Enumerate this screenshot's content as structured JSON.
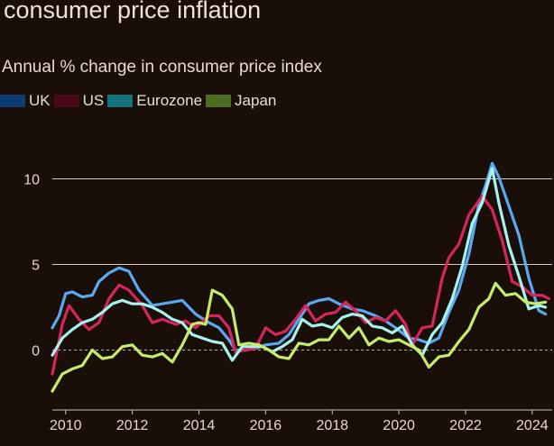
{
  "header": {
    "title": "consumer price inflation",
    "subtitle": "Annual % change in consumer price index"
  },
  "chart_data": {
    "type": "line",
    "title": "consumer price inflation",
    "subtitle": "Annual % change in consumer price index",
    "xlabel": "",
    "ylabel": "",
    "xlim": [
      2009.6,
      2024.6
    ],
    "ylim": [
      -3.5,
      11.5
    ],
    "yticks": [
      "0",
      "5",
      "10"
    ],
    "ytick_values": [
      0,
      5,
      10
    ],
    "xticks": [
      "2010",
      "2012",
      "2014",
      "2016",
      "2018",
      "2020",
      "2022",
      "2024"
    ],
    "xtick_values": [
      2010,
      2012,
      2014,
      2016,
      2018,
      2020,
      2022,
      2024
    ],
    "grid": "horizontal",
    "legend_position": "top-left",
    "series": [
      {
        "name": "UK",
        "legend_color": "#0e3d73",
        "line_color": "#5aa8f0",
        "x": [
          2009.6,
          2009.8,
          2010.0,
          2010.2,
          2010.5,
          2010.8,
          2011.0,
          2011.3,
          2011.6,
          2011.9,
          2012.2,
          2012.6,
          2012.9,
          2013.2,
          2013.5,
          2013.9,
          2014.3,
          2014.6,
          2014.9,
          2015.1,
          2015.4,
          2015.7,
          2016.0,
          2016.4,
          2016.7,
          2017.0,
          2017.3,
          2017.6,
          2017.9,
          2018.2,
          2018.6,
          2018.9,
          2019.3,
          2019.6,
          2019.9,
          2020.3,
          2020.6,
          2020.9,
          2021.2,
          2021.5,
          2021.8,
          2022.1,
          2022.4,
          2022.6,
          2022.8,
          2023.0,
          2023.3,
          2023.6,
          2023.9,
          2024.2,
          2024.4
        ],
        "y": [
          1.3,
          2.0,
          3.3,
          3.4,
          3.1,
          3.2,
          4.0,
          4.5,
          4.8,
          4.6,
          3.5,
          2.6,
          2.7,
          2.8,
          2.9,
          2.1,
          1.6,
          1.3,
          0.6,
          0.0,
          0.0,
          0.1,
          0.3,
          0.4,
          0.9,
          1.8,
          2.7,
          2.9,
          3.0,
          2.7,
          2.4,
          2.3,
          2.0,
          1.7,
          1.3,
          0.7,
          0.6,
          0.4,
          0.7,
          2.2,
          3.5,
          5.6,
          8.5,
          9.6,
          10.9,
          10.1,
          8.4,
          6.7,
          4.2,
          2.3,
          2.1
        ]
      },
      {
        "name": "US",
        "legend_color": "#4a0a1a",
        "line_color": "#d4265c",
        "x": [
          2009.6,
          2009.9,
          2010.1,
          2010.4,
          2010.7,
          2011.0,
          2011.3,
          2011.6,
          2011.9,
          2012.3,
          2012.6,
          2012.9,
          2013.3,
          2013.6,
          2013.9,
          2014.3,
          2014.6,
          2014.9,
          2015.1,
          2015.4,
          2015.7,
          2016.0,
          2016.3,
          2016.6,
          2016.9,
          2017.2,
          2017.5,
          2017.8,
          2018.1,
          2018.4,
          2018.7,
          2019.0,
          2019.3,
          2019.6,
          2019.9,
          2020.2,
          2020.4,
          2020.7,
          2021.0,
          2021.3,
          2021.5,
          2021.8,
          2022.1,
          2022.5,
          2022.8,
          2023.1,
          2023.4,
          2023.7,
          2024.0,
          2024.3,
          2024.5
        ],
        "y": [
          -1.4,
          1.5,
          2.6,
          1.8,
          1.2,
          1.6,
          3.0,
          3.8,
          3.5,
          2.6,
          1.6,
          1.8,
          1.5,
          1.7,
          1.3,
          2.0,
          2.0,
          1.3,
          -0.1,
          0.0,
          0.1,
          1.3,
          0.9,
          1.1,
          1.8,
          2.6,
          1.7,
          2.1,
          2.2,
          2.8,
          2.3,
          1.6,
          1.9,
          1.7,
          2.3,
          1.5,
          0.3,
          1.3,
          1.4,
          4.2,
          5.4,
          6.2,
          7.9,
          9.0,
          8.2,
          6.4,
          4.0,
          3.7,
          3.2,
          3.2,
          3.0
        ]
      },
      {
        "name": "Eurozone",
        "legend_color": "#13737b",
        "line_color": "#a8f2ee",
        "x": [
          2009.6,
          2009.9,
          2010.2,
          2010.5,
          2010.8,
          2011.1,
          2011.4,
          2011.7,
          2012.0,
          2012.3,
          2012.6,
          2012.9,
          2013.2,
          2013.5,
          2013.8,
          2014.1,
          2014.4,
          2014.7,
          2015.0,
          2015.3,
          2015.6,
          2015.9,
          2016.2,
          2016.5,
          2016.8,
          2017.1,
          2017.4,
          2017.7,
          2018.0,
          2018.3,
          2018.6,
          2018.9,
          2019.2,
          2019.5,
          2019.8,
          2020.1,
          2020.4,
          2020.7,
          2021.0,
          2021.3,
          2021.6,
          2021.9,
          2022.2,
          2022.5,
          2022.8,
          2023.0,
          2023.3,
          2023.6,
          2023.9,
          2024.2,
          2024.4
        ],
        "y": [
          -0.3,
          0.7,
          1.2,
          1.6,
          1.8,
          2.2,
          2.7,
          2.9,
          2.7,
          2.7,
          2.5,
          2.2,
          1.8,
          1.6,
          0.9,
          0.7,
          0.5,
          0.4,
          -0.6,
          0.2,
          0.2,
          0.2,
          -0.1,
          0.2,
          0.6,
          1.8,
          1.4,
          1.5,
          1.3,
          1.9,
          2.1,
          2.0,
          1.4,
          1.3,
          1.0,
          1.4,
          0.3,
          -0.3,
          0.9,
          1.6,
          3.0,
          4.9,
          7.4,
          8.6,
          10.6,
          8.6,
          6.1,
          4.3,
          2.4,
          2.6,
          2.5
        ]
      },
      {
        "name": "Japan",
        "legend_color": "#4c6b24",
        "line_color": "#c4ec6a",
        "x": [
          2009.6,
          2009.9,
          2010.2,
          2010.5,
          2010.8,
          2011.1,
          2011.4,
          2011.7,
          2012.0,
          2012.3,
          2012.6,
          2012.9,
          2013.2,
          2013.5,
          2013.8,
          2014.0,
          2014.2,
          2014.4,
          2014.7,
          2015.0,
          2015.2,
          2015.5,
          2015.8,
          2016.1,
          2016.4,
          2016.7,
          2017.0,
          2017.3,
          2017.6,
          2017.9,
          2018.2,
          2018.5,
          2018.8,
          2019.1,
          2019.4,
          2019.7,
          2020.0,
          2020.3,
          2020.6,
          2020.9,
          2021.2,
          2021.5,
          2021.8,
          2022.1,
          2022.4,
          2022.7,
          2022.9,
          2023.2,
          2023.5,
          2023.8,
          2024.1,
          2024.4
        ],
        "y": [
          -2.4,
          -1.4,
          -1.1,
          -0.9,
          0.0,
          -0.5,
          -0.4,
          0.2,
          0.3,
          -0.3,
          -0.4,
          -0.2,
          -0.7,
          0.3,
          1.5,
          1.6,
          1.5,
          3.5,
          3.2,
          2.4,
          0.3,
          0.4,
          0.3,
          0.0,
          -0.4,
          -0.5,
          0.4,
          0.3,
          0.6,
          0.6,
          1.4,
          0.7,
          1.3,
          0.3,
          0.7,
          0.5,
          0.6,
          0.3,
          0.0,
          -1.0,
          -0.4,
          -0.3,
          0.5,
          1.2,
          2.5,
          3.0,
          3.9,
          3.2,
          3.3,
          2.8,
          2.7,
          2.8
        ]
      }
    ]
  }
}
